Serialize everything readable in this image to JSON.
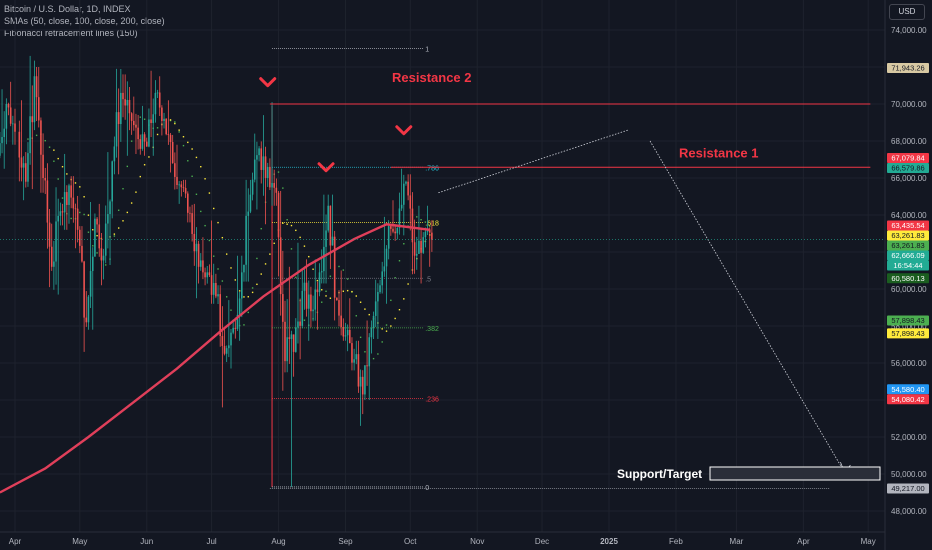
{
  "header": {
    "symbol_line": "Bitcoin / U.S. Dollar, 1D, INDEX",
    "sma_line": "SMAs (50, close, 100, close, 200, close)",
    "fib_line": "Fibonacci retracement lines (150)"
  },
  "currency_badge": "USD",
  "chart_data": {
    "type": "candlestick",
    "x_axis": {
      "type": "date",
      "tick_labels": [
        "Apr",
        "May",
        "Jun",
        "Jul",
        "Aug",
        "Sep",
        "Oct",
        "Nov",
        "Dec",
        "2025",
        "Feb",
        "Mar",
        "Apr",
        "May"
      ],
      "range": [
        "2024-03-25",
        "2025-05-08"
      ]
    },
    "y_axis": {
      "position": "right",
      "range": [
        47000,
        75300
      ],
      "ticks": [
        48000,
        50000,
        52000,
        54000,
        56000,
        58000,
        60000,
        62000,
        64000,
        66000,
        68000,
        70000,
        72000,
        74000
      ],
      "tick_labels": [
        "48,000.00",
        "50,000.00",
        "52,000.00",
        "54,000.00",
        "56,000.00",
        "58,000.00",
        "60,000.00",
        "62,000.00",
        "64,000.00",
        "66,000.00",
        "68,000.00",
        "70,000.00",
        "72,000.00",
        "74,000.00"
      ]
    },
    "grid": true,
    "colors": {
      "up": "#26a69a",
      "down": "#ef5350",
      "background": "#131722",
      "sma200": "#e03f5a",
      "sma_fast_a": "#4caf50",
      "sma_fast_b": "#ffeb3b",
      "annotation_red": "#f23645"
    },
    "price_badges": [
      {
        "value": "71,943.26",
        "color": "#d8c9a3",
        "text_color": "#131722"
      },
      {
        "value": "67,079.84",
        "color": "#f23645",
        "text_color": "#ffffff"
      },
      {
        "value": "66,579.86",
        "color": "#22ab94",
        "text_color": "#131722"
      },
      {
        "value": "63,435.54",
        "color": "#f23645",
        "text_color": "#ffffff"
      },
      {
        "value": "63,261.83",
        "color": "#ffeb3b",
        "text_color": "#131722"
      },
      {
        "value": "63,261.83",
        "color": "#4caf50",
        "text_color": "#131722"
      },
      {
        "value": "62,666.09",
        "color": "#22ab94",
        "text_color": "#ffffff"
      },
      {
        "value": "16:54:44",
        "color": "#22ab94",
        "text_color": "#ffffff",
        "at": 62000
      },
      {
        "value": "60,580.13",
        "color": "#1b5e20",
        "text_color": "#ffffff"
      },
      {
        "value": "57,898.43",
        "color": "#4caf50",
        "text_color": "#131722",
        "at": 58300
      },
      {
        "value": "57,898.43",
        "color": "#ffeb3b",
        "text_color": "#131722",
        "at": 57600
      },
      {
        "value": "54,580.40",
        "color": "#2196f3",
        "text_color": "#ffffff"
      },
      {
        "value": "54,080.42",
        "color": "#f23645",
        "text_color": "#ffffff"
      },
      {
        "value": "49,217.00",
        "color": "#b2b5be",
        "text_color": "#131722"
      }
    ],
    "current_price": 62666.09,
    "fibonacci": {
      "range": [
        "2024-07-29",
        "2024-10-07"
      ],
      "levels": [
        {
          "ratio": "1",
          "price": 73800
        },
        {
          "ratio": ".786",
          "price": 69200
        },
        {
          "ratio": ".618",
          "price": 65900
        },
        {
          "ratio": ".5",
          "price": 63800
        },
        {
          "ratio": ".382",
          "price": 61700
        },
        {
          "ratio": ".236",
          "price": 58700
        },
        {
          "ratio": "0",
          "price": 49217
        }
      ],
      "level_prices_on_axis": {
        "1": 73000,
        "0.786": 66580,
        "0.618": 63600,
        "0.5": 60580,
        "0.382": 57900,
        "0.236": 54080,
        "0": 49300
      }
    },
    "annotations": {
      "resistance_1": {
        "label": "Resistance 1",
        "price": 66580,
        "from": "2024-09-22",
        "to": "2025-05-02"
      },
      "resistance_2": {
        "label": "Resistance 2",
        "price": 70000,
        "from": "2024-07-28",
        "to": "2025-05-02"
      },
      "support_target": {
        "label": "Support/Target",
        "price": 50000
      },
      "projection": [
        {
          "date": "2024-10-14",
          "price": 65200
        },
        {
          "date": "2025-01-10",
          "price": 68600
        },
        {
          "date": "2025-01-20",
          "price": 68000
        },
        {
          "date": "2025-04-20",
          "price": 50100
        }
      ],
      "down_markers": [
        {
          "date": "2024-07-27",
          "price": 71100
        },
        {
          "date": "2024-08-23",
          "price": 66500
        },
        {
          "date": "2024-09-28",
          "price": 68500
        }
      ]
    },
    "sma200": [
      {
        "date": "2024-03-25",
        "price": 49000
      },
      {
        "date": "2024-04-15",
        "price": 50300
      },
      {
        "date": "2024-05-05",
        "price": 52000
      },
      {
        "date": "2024-05-25",
        "price": 53800
      },
      {
        "date": "2024-06-15",
        "price": 55700
      },
      {
        "date": "2024-07-05",
        "price": 57700
      },
      {
        "date": "2024-07-25",
        "price": 59600
      },
      {
        "date": "2024-08-15",
        "price": 61300
      },
      {
        "date": "2024-09-05",
        "price": 62700
      },
      {
        "date": "2024-09-20",
        "price": 63500
      },
      {
        "date": "2024-10-10",
        "price": 63200
      }
    ],
    "candles": [
      [
        "2024-03-25",
        67200,
        70800,
        66500,
        70000
      ],
      [
        "2024-03-29",
        70000,
        71200,
        67800,
        68500
      ],
      [
        "2024-04-03",
        68500,
        70200,
        64800,
        65800
      ],
      [
        "2024-04-07",
        65800,
        72600,
        65400,
        71500
      ],
      [
        "2024-04-11",
        71500,
        72000,
        65200,
        66000
      ],
      [
        "2024-04-15",
        66000,
        66800,
        60100,
        61200
      ],
      [
        "2024-04-19",
        61200,
        65500,
        59700,
        64200
      ],
      [
        "2024-04-23",
        64200,
        67300,
        63200,
        65600
      ],
      [
        "2024-04-27",
        65600,
        66100,
        62200,
        63200
      ],
      [
        "2024-05-01",
        63200,
        63400,
        56600,
        58200
      ],
      [
        "2024-05-05",
        58200,
        64700,
        57800,
        63800
      ],
      [
        "2024-05-09",
        63800,
        64600,
        60200,
        61800
      ],
      [
        "2024-05-13",
        61800,
        67400,
        61300,
        66900
      ],
      [
        "2024-05-17",
        66900,
        71900,
        66200,
        70600
      ],
      [
        "2024-05-21",
        70600,
        71600,
        67200,
        69500
      ],
      [
        "2024-05-25",
        69500,
        70400,
        67300,
        68100
      ],
      [
        "2024-05-29",
        68100,
        69900,
        67200,
        67700
      ],
      [
        "2024-06-02",
        67700,
        71800,
        67200,
        70600
      ],
      [
        "2024-06-06",
        70600,
        71500,
        68300,
        69200
      ],
      [
        "2024-06-10",
        69200,
        70200,
        66300,
        66800
      ],
      [
        "2024-06-14",
        66800,
        67800,
        64600,
        65500
      ],
      [
        "2024-06-18",
        65500,
        65900,
        63600,
        64100
      ],
      [
        "2024-06-22",
        64100,
        64600,
        59500,
        61200
      ],
      [
        "2024-06-26",
        61200,
        62800,
        60200,
        60900
      ],
      [
        "2024-06-30",
        60900,
        63700,
        59200,
        59600
      ],
      [
        "2024-07-04",
        59600,
        60200,
        53600,
        56500
      ],
      [
        "2024-07-08",
        56500,
        59400,
        55700,
        57900
      ],
      [
        "2024-07-12",
        57900,
        61800,
        57200,
        60900
      ],
      [
        "2024-07-16",
        60900,
        65900,
        60400,
        65100
      ],
      [
        "2024-07-20",
        65100,
        68400,
        64300,
        67600
      ],
      [
        "2024-07-24",
        67600,
        69400,
        63500,
        66600
      ],
      [
        "2024-07-28",
        66600,
        70100,
        64500,
        65200
      ],
      [
        "2024-08-01",
        65200,
        65300,
        54500,
        56100
      ],
      [
        "2024-08-05",
        56100,
        61200,
        49300,
        56600
      ],
      [
        "2024-08-09",
        56600,
        62500,
        56200,
        59900
      ],
      [
        "2024-08-13",
        59900,
        61600,
        57200,
        58800
      ],
      [
        "2024-08-17",
        58800,
        61600,
        57800,
        60900
      ],
      [
        "2024-08-21",
        60900,
        65100,
        60300,
        64500
      ],
      [
        "2024-08-25",
        64500,
        65100,
        58300,
        59400
      ],
      [
        "2024-08-29",
        59400,
        61000,
        57200,
        57500
      ],
      [
        "2024-09-02",
        57500,
        59500,
        55600,
        56200
      ],
      [
        "2024-09-06",
        56200,
        57200,
        52600,
        54300
      ],
      [
        "2024-09-10",
        54300,
        58300,
        54000,
        57900
      ],
      [
        "2024-09-14",
        57900,
        60500,
        57300,
        60200
      ],
      [
        "2024-09-18",
        60200,
        63900,
        59200,
        63400
      ],
      [
        "2024-09-22",
        63400,
        64800,
        62600,
        63300
      ],
      [
        "2024-09-26",
        63300,
        66500,
        62900,
        65800
      ],
      [
        "2024-09-30",
        65800,
        66200,
        60800,
        61800
      ],
      [
        "2024-10-04",
        61800,
        64500,
        60300,
        62800
      ],
      [
        "2024-10-08",
        62800,
        64500,
        61200,
        62666
      ]
    ]
  }
}
